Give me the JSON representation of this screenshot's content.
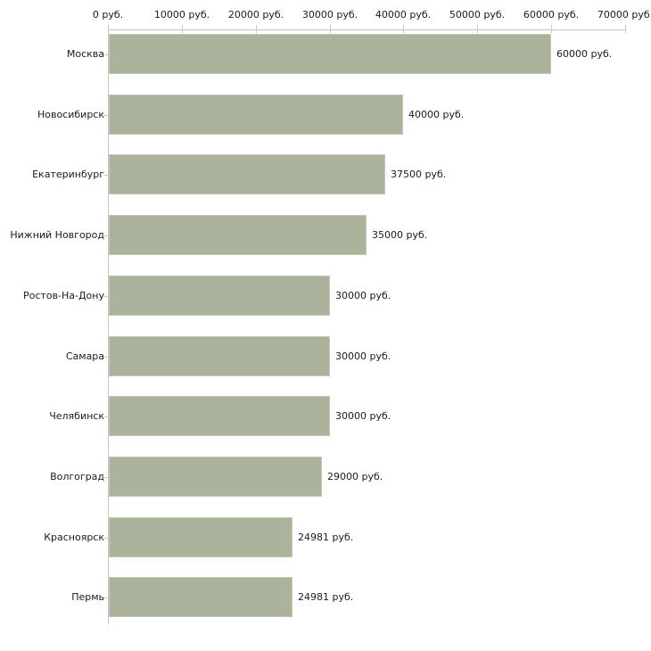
{
  "chart_data": {
    "type": "bar",
    "orientation": "horizontal",
    "title": "",
    "xlabel": "",
    "ylabel": "",
    "unit": "руб.",
    "categories": [
      "Москва",
      "Новосибирск",
      "Екатеринбург",
      "Нижний Новгород",
      "Ростов-На-Дону",
      "Самара",
      "Челябинск",
      "Волгоград",
      "Красноярск",
      "Пермь"
    ],
    "values": [
      60000,
      40000,
      37500,
      35000,
      30000,
      30000,
      30000,
      29000,
      24981,
      24981
    ],
    "value_labels": [
      "60000 руб.",
      "40000 руб.",
      "37500 руб.",
      "35000 руб.",
      "30000 руб.",
      "30000 руб.",
      "30000 руб.",
      "29000 руб.",
      "24981 руб.",
      "24981 руб."
    ],
    "x_axis": {
      "position": "top",
      "min": 0,
      "max": 70000,
      "ticks": [
        0,
        10000,
        20000,
        30000,
        40000,
        50000,
        60000,
        70000
      ],
      "tick_labels": [
        "0 руб.",
        "10000 руб.",
        "20000 руб.",
        "30000 руб.",
        "40000 руб.",
        "50000 руб.",
        "60000 руб.",
        "70000 руб."
      ]
    },
    "legend": "none",
    "grid": "off",
    "colors": {
      "bar_fill": "#acb39c",
      "bar_border": "#c2c8b1",
      "axis_line": "#c6c6c6",
      "tick_mark": "#c9c9ab",
      "text": "#1a1a1a",
      "background": "#ffffff"
    }
  }
}
